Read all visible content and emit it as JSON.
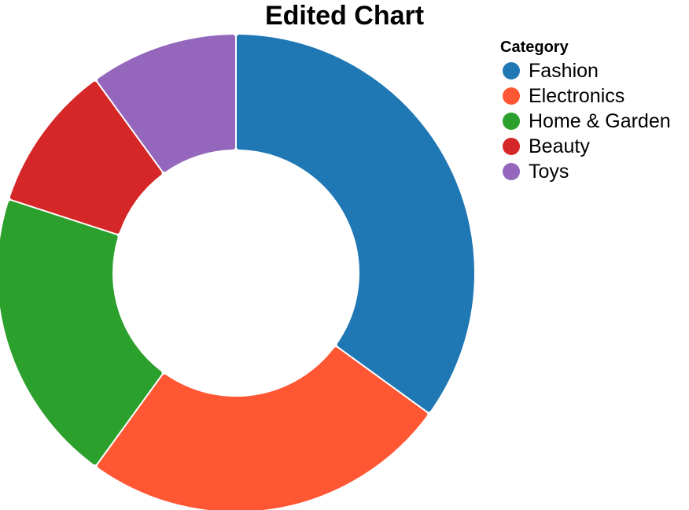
{
  "chart_data": {
    "type": "pie",
    "variant": "donut",
    "title": "Edited Chart",
    "legend": {
      "title": "Category",
      "placement": "top-right"
    },
    "categories": [
      "Fashion",
      "Electronics",
      "Home & Garden",
      "Beauty",
      "Toys"
    ],
    "values": [
      35,
      25,
      20,
      10,
      10
    ],
    "colors": [
      "#1f77b4",
      "#ff5733",
      "#2ca02c",
      "#d62728",
      "#9467bd"
    ]
  }
}
